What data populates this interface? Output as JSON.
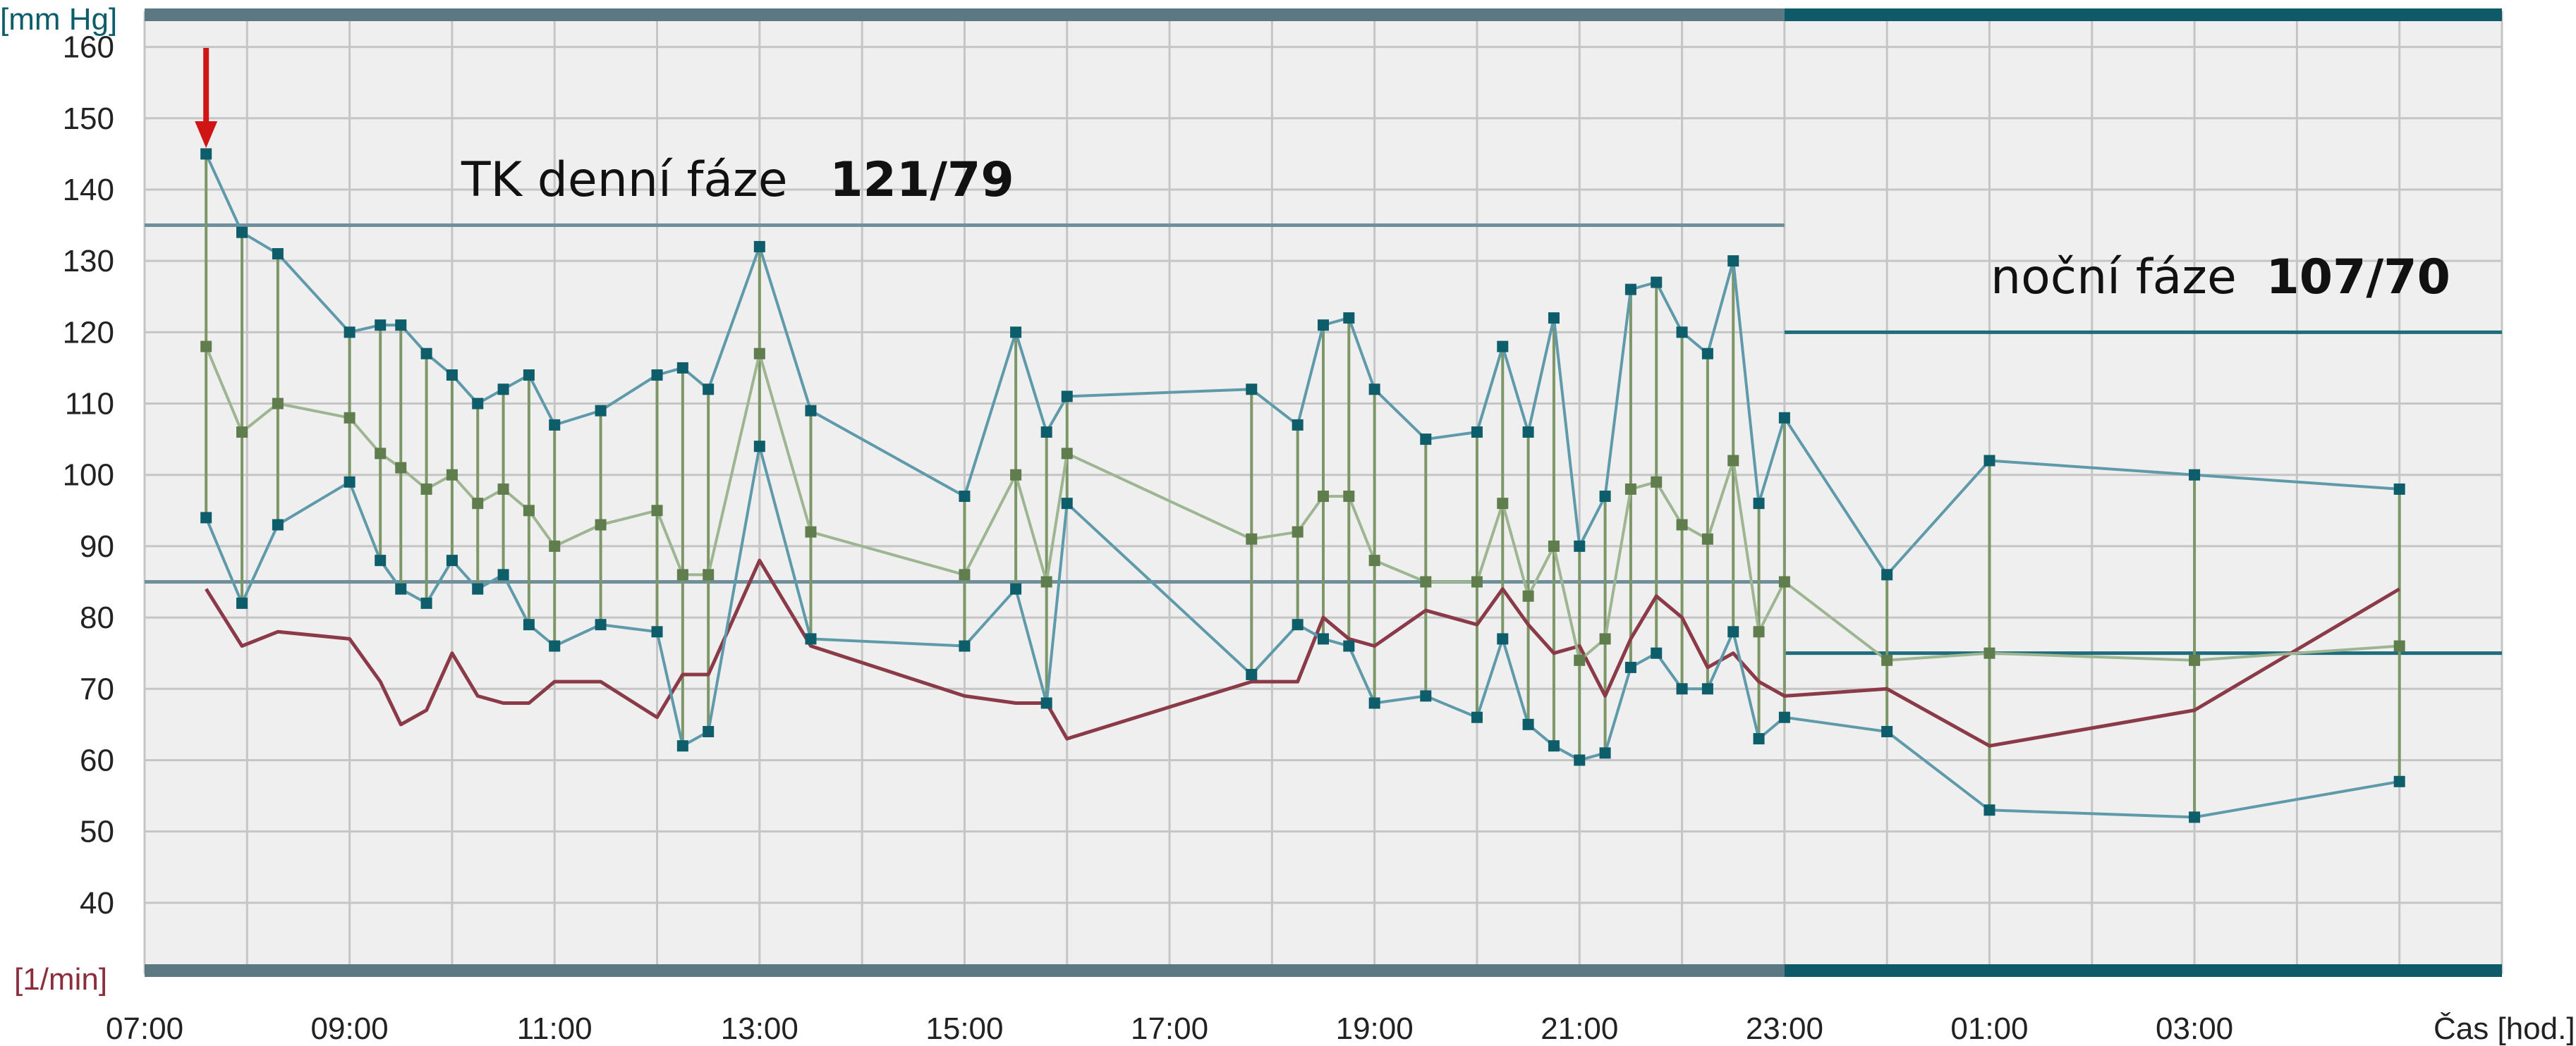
{
  "chart_data": {
    "type": "line",
    "y_unit_label": "[mm Hg]",
    "y2_unit_label": "[1/min]",
    "xlabel": "Čas [hod.]",
    "ylim": [
      30,
      165
    ],
    "xlim": [
      7,
      30
    ],
    "y_ticks": [
      40,
      50,
      60,
      70,
      80,
      90,
      100,
      110,
      120,
      130,
      140,
      150,
      160
    ],
    "x_ticks": [
      {
        "x": 7,
        "label": "07:00"
      },
      {
        "x": 9,
        "label": "09:00"
      },
      {
        "x": 11,
        "label": "11:00"
      },
      {
        "x": 13,
        "label": "13:00"
      },
      {
        "x": 15,
        "label": "15:00"
      },
      {
        "x": 17,
        "label": "17:00"
      },
      {
        "x": 19,
        "label": "19:00"
      },
      {
        "x": 21,
        "label": "21:00"
      },
      {
        "x": 23,
        "label": "23:00"
      },
      {
        "x": 25,
        "label": "01:00"
      },
      {
        "x": 27,
        "label": "03:00"
      }
    ],
    "phases": {
      "day": {
        "start": 7,
        "end": 23,
        "systolic_limit": 135,
        "diastolic_limit": 85
      },
      "night": {
        "start": 23,
        "end": 30,
        "systolic_limit": 120,
        "diastolic_limit": 75
      }
    },
    "annotations": {
      "day_label": "TK denní fáze",
      "day_value": "121/79",
      "night_label": "noční fáze",
      "night_value": "107/70",
      "arrow_at_x": 7.6
    },
    "colors": {
      "systolic": "#5e9aaa",
      "diastolic": "#5e9aaa",
      "mean": "#9db591",
      "pulse": "#8b3a48",
      "marker_bp": "#0d5d6a",
      "marker_mean": "#5f7d4d",
      "range_line": "#7d9668",
      "limit_day": "#6f8f9a",
      "limit_night": "#1d6d7c",
      "band_day": "#5c7882",
      "band_night": "#0e5a69",
      "arrow": "#d01515",
      "plot_bg": "#efefef",
      "grid": "#c5c5c5"
    },
    "systolic": {
      "x": [
        7.6,
        7.95,
        8.3,
        9.0,
        9.3,
        9.5,
        9.75,
        10.0,
        10.25,
        10.5,
        10.75,
        11.0,
        11.45,
        12.0,
        12.25,
        12.5,
        13.0,
        13.5,
        15.0,
        15.5,
        15.8,
        16.0,
        17.8,
        18.25,
        18.5,
        18.75,
        19.0,
        19.5,
        20.0,
        20.25,
        20.5,
        20.75,
        21.0,
        21.25,
        21.5,
        21.75,
        22.0,
        22.25,
        22.5,
        22.75,
        23.0,
        24.0,
        25.0,
        27.0,
        29.0
      ],
      "y": [
        145,
        134,
        131,
        120,
        121,
        121,
        117,
        114,
        110,
        112,
        114,
        107,
        109,
        114,
        115,
        112,
        132,
        109,
        97,
        120,
        106,
        111,
        112,
        107,
        121,
        122,
        112,
        105,
        106,
        118,
        106,
        122,
        90,
        97,
        126,
        127,
        120,
        117,
        130,
        96,
        108,
        86,
        102,
        100,
        98
      ]
    },
    "diastolic": {
      "x": [
        7.6,
        7.95,
        8.3,
        9.0,
        9.3,
        9.5,
        9.75,
        10.0,
        10.25,
        10.5,
        10.75,
        11.0,
        11.45,
        12.0,
        12.25,
        12.5,
        13.0,
        13.5,
        15.0,
        15.5,
        15.8,
        16.0,
        17.8,
        18.25,
        18.5,
        18.75,
        19.0,
        19.5,
        20.0,
        20.25,
        20.5,
        20.75,
        21.0,
        21.25,
        21.5,
        21.75,
        22.0,
        22.25,
        22.5,
        22.75,
        23.0,
        24.0,
        25.0,
        27.0,
        29.0
      ],
      "y": [
        94,
        82,
        93,
        99,
        88,
        84,
        82,
        88,
        84,
        86,
        79,
        76,
        79,
        78,
        62,
        64,
        104,
        77,
        76,
        84,
        68,
        96,
        72,
        79,
        77,
        76,
        68,
        69,
        66,
        77,
        65,
        62,
        60,
        61,
        73,
        75,
        70,
        70,
        78,
        63,
        66,
        64,
        53,
        52,
        57
      ]
    },
    "mean": {
      "x": [
        7.6,
        7.95,
        8.3,
        9.0,
        9.3,
        9.5,
        9.75,
        10.0,
        10.25,
        10.5,
        10.75,
        11.0,
        11.45,
        12.0,
        12.25,
        12.5,
        13.0,
        13.5,
        15.0,
        15.5,
        15.8,
        16.0,
        17.8,
        18.25,
        18.5,
        18.75,
        19.0,
        19.5,
        20.0,
        20.25,
        20.5,
        20.75,
        21.0,
        21.25,
        21.5,
        21.75,
        22.0,
        22.25,
        22.5,
        22.75,
        23.0,
        24.0,
        25.0,
        27.0,
        29.0
      ],
      "y": [
        118,
        106,
        110,
        108,
        103,
        101,
        98,
        100,
        96,
        98,
        95,
        90,
        93,
        95,
        86,
        86,
        117,
        92,
        86,
        100,
        85,
        103,
        91,
        92,
        97,
        97,
        88,
        85,
        85,
        96,
        83,
        90,
        74,
        77,
        98,
        99,
        93,
        91,
        102,
        78,
        85,
        74,
        75,
        74,
        76
      ]
    },
    "pulse": {
      "x": [
        7.6,
        7.95,
        8.3,
        9.0,
        9.3,
        9.5,
        9.75,
        10.0,
        10.25,
        10.5,
        10.75,
        11.0,
        11.45,
        12.0,
        12.25,
        12.5,
        13.0,
        13.5,
        15.0,
        15.5,
        15.8,
        16.0,
        17.8,
        18.25,
        18.5,
        18.75,
        19.0,
        19.5,
        20.0,
        20.25,
        20.5,
        20.75,
        21.0,
        21.25,
        21.5,
        21.75,
        22.0,
        22.25,
        22.5,
        22.75,
        23.0,
        24.0,
        25.0,
        27.0,
        29.0
      ],
      "y": [
        84,
        76,
        78,
        77,
        71,
        65,
        67,
        75,
        69,
        68,
        68,
        71,
        71,
        66,
        72,
        72,
        88,
        76,
        69,
        68,
        68,
        63,
        71,
        71,
        80,
        77,
        76,
        81,
        79,
        84,
        79,
        75,
        76,
        69,
        77,
        83,
        80,
        73,
        75,
        71,
        69,
        70,
        62,
        67,
        84
      ]
    }
  }
}
